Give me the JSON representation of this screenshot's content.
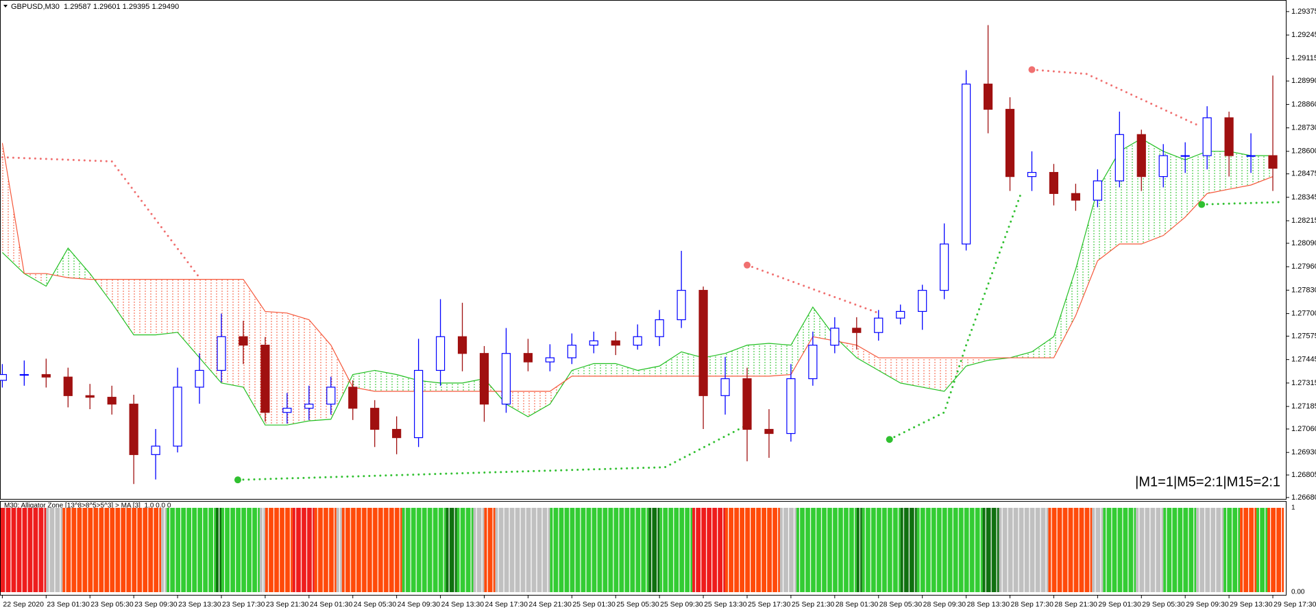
{
  "chart_data": [
    {
      "type": "candlestick",
      "title": "GBPUSD,M30  1.29587 1.29601 1.29395 1.29490",
      "annotation": "|M1=1|M5=2:1|M15=2:1",
      "up_color": "#0000ff",
      "down_color": "#a01010",
      "xlim": [
        -0.3,
        234.5
      ],
      "ylim": [
        1.26676,
        1.29424
      ],
      "yticks": [
        1.29375,
        1.29245,
        1.29115,
        {
          "value": 1.2899,
          "label": "1.28990"
        },
        {
          "value": 1.2886,
          "label": "1.28860"
        },
        {
          "value": 1.2873,
          "label": "1.28730"
        },
        {
          "value": 1.286,
          "label": "1.28600"
        },
        1.28475,
        1.28345,
        1.28215,
        {
          "value": 1.2809,
          "label": "1.28090"
        },
        {
          "value": 1.2796,
          "label": "1.27960"
        },
        {
          "value": 1.2783,
          "label": "1.27830"
        },
        {
          "value": 1.277,
          "label": "1.27700"
        },
        1.27575,
        1.27445,
        1.27315,
        1.27185,
        {
          "value": 1.2706,
          "label": "1.27060"
        },
        {
          "value": 1.2693,
          "label": "1.26930"
        },
        1.26805,
        {
          "value": 1.2668,
          "label": "1.26680"
        }
      ],
      "x": [
        0,
        4,
        8,
        12,
        16,
        20,
        24,
        28,
        32,
        36,
        40,
        44,
        48,
        52,
        56,
        60,
        64,
        68,
        72,
        76,
        80,
        84,
        88,
        92,
        96,
        100,
        104,
        108,
        112,
        116,
        120,
        124,
        128,
        132,
        136,
        140,
        144,
        148,
        152,
        156,
        160,
        164,
        168,
        172,
        176,
        180,
        184,
        188,
        192,
        196,
        200,
        204,
        208,
        212,
        216,
        220,
        224,
        228,
        232
      ],
      "open": [
        1.2733,
        1.27362,
        1.27362,
        1.27348,
        1.27245,
        1.27236,
        1.27198,
        1.26918,
        1.26965,
        1.27292,
        1.27385,
        1.27572,
        1.27525,
        1.27152,
        1.27175,
        1.27198,
        1.27292,
        1.27175,
        1.27058,
        1.27012,
        1.27385,
        1.27572,
        1.27479,
        1.27198,
        1.27479,
        1.27432,
        1.27455,
        1.27525,
        1.27549,
        1.27525,
        1.27572,
        1.27666,
        1.27829,
        1.27245,
        1.27339,
        1.27058,
        1.27035,
        1.27339,
        1.27525,
        1.27619,
        1.27595,
        1.27675,
        1.27712,
        1.27829,
        1.28086,
        1.28973,
        1.28833,
        1.2846,
        1.28483,
        1.28366,
        1.28329,
        1.28436,
        1.28693,
        1.2846,
        1.28576,
        1.28576,
        1.28786,
        1.28576,
        1.28576
      ],
      "high": [
        1.2742,
        1.2744,
        1.2745,
        1.274,
        1.2731,
        1.273,
        1.2725,
        1.2706,
        1.274,
        1.2748,
        1.277,
        1.2766,
        1.2757,
        1.2726,
        1.273,
        1.2735,
        1.2733,
        1.2722,
        1.2713,
        1.2756,
        1.2778,
        1.2776,
        1.2752,
        1.2762,
        1.2756,
        1.2753,
        1.2759,
        1.276,
        1.276,
        1.2764,
        1.2772,
        1.28048,
        1.2785,
        1.2746,
        1.274,
        1.2717,
        1.2742,
        1.276,
        1.2768,
        1.2768,
        1.2772,
        1.2775,
        1.2786,
        1.282,
        1.2905,
        1.293,
        1.289,
        1.286,
        1.2853,
        1.2842,
        1.285,
        1.2882,
        1.2872,
        1.2864,
        1.2865,
        1.2885,
        1.2882,
        1.287,
        1.2902
      ],
      "low": [
        1.2729,
        1.273,
        1.2729,
        1.2718,
        1.2717,
        1.2714,
        1.26755,
        1.2678,
        1.2693,
        1.272,
        1.2732,
        1.2742,
        1.271,
        1.2709,
        1.2711,
        1.2714,
        1.2711,
        1.2696,
        1.2692,
        1.2696,
        1.273,
        1.2738,
        1.271,
        1.2715,
        1.2738,
        1.2738,
        1.2742,
        1.2748,
        1.2747,
        1.275,
        1.2752,
        1.2762,
        1.2706,
        1.2714,
        1.26881,
        1.269,
        1.2699,
        1.273,
        1.2748,
        1.275,
        1.2755,
        1.2764,
        1.2761,
        1.2778,
        1.2805,
        1.287,
        1.2838,
        1.2838,
        1.283,
        1.2827,
        1.2829,
        1.284,
        1.2838,
        1.284,
        1.2848,
        1.285,
        1.2846,
        1.2848,
        1.2838
      ],
      "close": [
        1.27362,
        1.27362,
        1.27348,
        1.27245,
        1.27236,
        1.27198,
        1.26918,
        1.26965,
        1.27292,
        1.27385,
        1.27572,
        1.27525,
        1.27152,
        1.27175,
        1.27198,
        1.27292,
        1.27175,
        1.27058,
        1.27012,
        1.27385,
        1.27572,
        1.27479,
        1.27198,
        1.27479,
        1.27432,
        1.27455,
        1.27525,
        1.27549,
        1.27525,
        1.27572,
        1.27666,
        1.27829,
        1.27245,
        1.27339,
        1.27058,
        1.27035,
        1.27339,
        1.27525,
        1.27619,
        1.27595,
        1.27675,
        1.27712,
        1.27829,
        1.28086,
        1.28973,
        1.28833,
        1.2846,
        1.28483,
        1.28366,
        1.28329,
        1.28436,
        1.28693,
        1.2846,
        1.28576,
        1.28576,
        1.28786,
        1.28576,
        1.28576,
        1.28506
      ],
      "span_a": {
        "color": "#22c022",
        "values": [
          1.28039,
          1.27922,
          1.27852,
          1.28063,
          1.27922,
          1.27759,
          1.27582,
          1.27582,
          1.27596,
          1.27455,
          1.27315,
          1.27292,
          1.27082,
          1.27082,
          1.27105,
          1.27114,
          1.27362,
          1.27385,
          1.27362,
          1.27329,
          1.27315,
          1.27315,
          1.27339,
          1.27198,
          1.27128,
          1.27198,
          1.27385,
          1.27423,
          1.27423,
          1.27385,
          1.27409,
          1.27488,
          1.27455,
          1.27479,
          1.27525,
          1.27535,
          1.27525,
          1.27736,
          1.27572,
          1.27455,
          1.27385,
          1.27315,
          1.27292,
          1.27269,
          1.27409,
          1.27441,
          1.27455,
          1.27488,
          1.27572,
          1.27946,
          1.2839,
          1.286,
          1.2867,
          1.286,
          1.28553,
          1.286,
          1.286,
          1.28576,
          1.28576
        ]
      },
      "span_b": {
        "color": "#f5573a",
        "values": [
          1.28646,
          1.27922,
          1.27922,
          1.27899,
          1.2789,
          1.2789,
          1.2789,
          1.2789,
          1.2789,
          1.2789,
          1.2789,
          1.2789,
          1.27712,
          1.27703,
          1.27666,
          1.27525,
          1.27292,
          1.27269,
          1.27269,
          1.27269,
          1.27269,
          1.27269,
          1.27269,
          1.27269,
          1.27269,
          1.27269,
          1.27353,
          1.27353,
          1.27353,
          1.27353,
          1.27353,
          1.27353,
          1.27353,
          1.27353,
          1.27353,
          1.27353,
          1.27362,
          1.27572,
          1.27549,
          1.27525,
          1.27455,
          1.27455,
          1.27455,
          1.27455,
          1.27455,
          1.27455,
          1.27455,
          1.27455,
          1.27455,
          1.27689,
          1.27993,
          1.28086,
          1.28086,
          1.28133,
          1.28235,
          1.28366,
          1.2839,
          1.28413,
          1.2846
        ]
      },
      "projections": [
        {
          "color": "#f07070",
          "marker": false,
          "x": [
            0,
            20,
            36
          ],
          "values": [
            1.28567,
            1.28544,
            1.27899
          ]
        },
        {
          "color": "#f07070",
          "marker": true,
          "x": [
            136,
            160
          ],
          "values": [
            1.27969,
            1.27703
          ]
        },
        {
          "color": "#f07070",
          "marker": true,
          "x": [
            188,
            198,
            218
          ],
          "values": [
            1.29053,
            1.29029,
            1.28749
          ]
        },
        {
          "color": "#30c030",
          "marker": true,
          "x": [
            43,
            121,
            136
          ],
          "values": [
            1.26778,
            1.26848,
            1.27082
          ]
        },
        {
          "color": "#30c030",
          "marker": true,
          "x": [
            162,
            172,
            176,
            186
          ],
          "values": [
            1.27002,
            1.27152,
            1.27525,
            1.28366
          ]
        },
        {
          "color": "#30c030",
          "marker": true,
          "x": [
            219,
            234
          ],
          "values": [
            1.28305,
            1.28319
          ]
        }
      ]
    },
    {
      "type": "bar",
      "title": "M30; Alligator Zone [13^8>8^5>5^3] > MA [3]  1.0 0.0 0",
      "xlim": [
        -0.3,
        234.5
      ],
      "ylim": [
        0,
        1
      ],
      "yticks": [
        1,
        {
          "value": 0,
          "label": "0.00"
        }
      ],
      "xticks": [
        {
          "value": 0,
          "label": "22 Sep 2020"
        },
        {
          "value": 8,
          "label": "23 Sep 01:30"
        },
        {
          "value": 16,
          "label": "23 Sep 05:30"
        },
        {
          "value": 24,
          "label": "23 Sep 09:30"
        },
        {
          "value": 32,
          "label": "23 Sep 13:30"
        },
        {
          "value": 40,
          "label": "23 Sep 17:30"
        },
        {
          "value": 48,
          "label": "23 Sep 21:30"
        },
        {
          "value": 56,
          "label": "24 Sep 01:30"
        },
        {
          "value": 64,
          "label": "24 Sep 05:30"
        },
        {
          "value": 72,
          "label": "24 Sep 09:30"
        },
        {
          "value": 80,
          "label": "24 Sep 13:30"
        },
        {
          "value": 88,
          "label": "24 Sep 17:30"
        },
        {
          "value": 96,
          "label": "24 Sep 21:30"
        },
        {
          "value": 104,
          "label": "25 Sep 01:30"
        },
        {
          "value": 112,
          "label": "25 Sep 05:30"
        },
        {
          "value": 120,
          "label": "25 Sep 09:30"
        },
        {
          "value": 128,
          "label": "25 Sep 13:30"
        },
        {
          "value": 136,
          "label": "25 Sep 17:30"
        },
        {
          "value": 144,
          "label": "25 Sep 21:30"
        },
        {
          "value": 152,
          "label": "28 Sep 01:30"
        },
        {
          "value": 160,
          "label": "28 Sep 05:30"
        },
        {
          "value": 168,
          "label": "28 Sep 09:30"
        },
        {
          "value": 176,
          "label": "28 Sep 13:30"
        },
        {
          "value": 184,
          "label": "28 Sep 17:30"
        },
        {
          "value": 192,
          "label": "28 Sep 21:30"
        },
        {
          "value": 200,
          "label": "29 Sep 01:30"
        },
        {
          "value": 208,
          "label": "29 Sep 05:30"
        },
        {
          "value": 216,
          "label": "29 Sep 09:30"
        },
        {
          "value": 224,
          "label": "29 Sep 13:30"
        },
        {
          "value": 232,
          "label": "29 Sep 17:30"
        }
      ],
      "runs": [
        {
          "color": "#ee1c1c",
          "x": [
            -0.3,
            8
          ]
        },
        {
          "color": "#c0c0c0",
          "x": [
            8,
            11
          ]
        },
        {
          "color": "#ff4a0a",
          "x": [
            11,
            29
          ]
        },
        {
          "color": "#c0c0c0",
          "x": [
            29,
            30
          ]
        },
        {
          "color": "#33cc33",
          "x": [
            30,
            39
          ]
        },
        {
          "color": "#107010",
          "x": [
            39,
            40
          ]
        },
        {
          "color": "#33cc33",
          "x": [
            40,
            47
          ]
        },
        {
          "color": "#c0c0c0",
          "x": [
            47,
            48
          ]
        },
        {
          "color": "#ff4a0a",
          "x": [
            48,
            53
          ]
        },
        {
          "color": "#ee1c1c",
          "x": [
            53,
            57
          ]
        },
        {
          "color": "#ff4a0a",
          "x": [
            57,
            61
          ]
        },
        {
          "color": "#c0c0c0",
          "x": [
            61,
            62
          ]
        },
        {
          "color": "#ff4a0a",
          "x": [
            62,
            73
          ]
        },
        {
          "color": "#33cc33",
          "x": [
            73,
            81
          ]
        },
        {
          "color": "#107010",
          "x": [
            81,
            83
          ]
        },
        {
          "color": "#33cc33",
          "x": [
            83,
            86
          ]
        },
        {
          "color": "#c0c0c0",
          "x": [
            86,
            88
          ]
        },
        {
          "color": "#ff4a0a",
          "x": [
            88,
            90
          ]
        },
        {
          "color": "#c0c0c0",
          "x": [
            90,
            100
          ]
        },
        {
          "color": "#33cc33",
          "x": [
            100,
            118
          ]
        },
        {
          "color": "#107010",
          "x": [
            118,
            120
          ]
        },
        {
          "color": "#33cc33",
          "x": [
            120,
            126
          ]
        },
        {
          "color": "#ee1c1c",
          "x": [
            126,
            132
          ]
        },
        {
          "color": "#ff4a0a",
          "x": [
            132,
            142
          ]
        },
        {
          "color": "#c0c0c0",
          "x": [
            142,
            145
          ]
        },
        {
          "color": "#33cc33",
          "x": [
            145,
            156
          ]
        },
        {
          "color": "#107010",
          "x": [
            156,
            157
          ]
        },
        {
          "color": "#33cc33",
          "x": [
            157,
            164
          ]
        },
        {
          "color": "#107010",
          "x": [
            164,
            167
          ]
        },
        {
          "color": "#33cc33",
          "x": [
            167,
            179
          ]
        },
        {
          "color": "#107010",
          "x": [
            179,
            182
          ]
        },
        {
          "color": "#c0c0c0",
          "x": [
            182,
            191
          ]
        },
        {
          "color": "#ff4a0a",
          "x": [
            191,
            199
          ]
        },
        {
          "color": "#c0c0c0",
          "x": [
            199,
            201
          ]
        },
        {
          "color": "#33cc33",
          "x": [
            201,
            207
          ]
        },
        {
          "color": "#c0c0c0",
          "x": [
            207,
            212
          ]
        },
        {
          "color": "#33cc33",
          "x": [
            212,
            218
          ]
        },
        {
          "color": "#c0c0c0",
          "x": [
            218,
            223
          ]
        },
        {
          "color": "#33cc33",
          "x": [
            223,
            226
          ]
        },
        {
          "color": "#ff4a0a",
          "x": [
            226,
            229
          ]
        },
        {
          "color": "#33cc33",
          "x": [
            229,
            231
          ]
        },
        {
          "color": "#ff4a0a",
          "x": [
            231,
            234
          ]
        }
      ]
    }
  ]
}
